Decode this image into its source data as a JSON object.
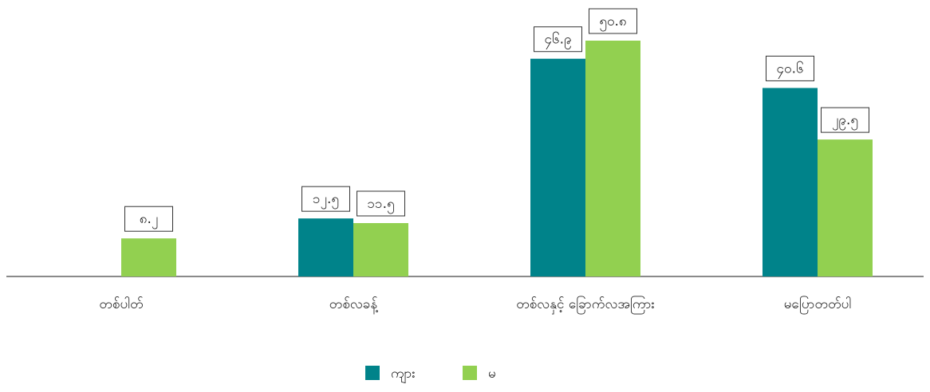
{
  "chart_data": {
    "type": "bar",
    "categories": [
      "တစ်ပါတ်",
      "တစ်လခန့်",
      "တစ်လနှင့် ခြောက်လအကြား",
      "မပြောတတ်ပါ"
    ],
    "series": [
      {
        "name": "ကျား",
        "color": "#00838a",
        "values": [
          null,
          12.5,
          46.9,
          40.6
        ],
        "value_labels": [
          null,
          "၁၂.၅",
          "၄၆.၉",
          "၄၀.၆"
        ]
      },
      {
        "name": "မ",
        "color": "#92d050",
        "values": [
          8.2,
          11.5,
          50.8,
          29.5
        ],
        "value_labels": [
          "၈.၂",
          "၁၁.၅",
          "၅၀.၈",
          "၂၉.၅"
        ]
      }
    ]
  }
}
